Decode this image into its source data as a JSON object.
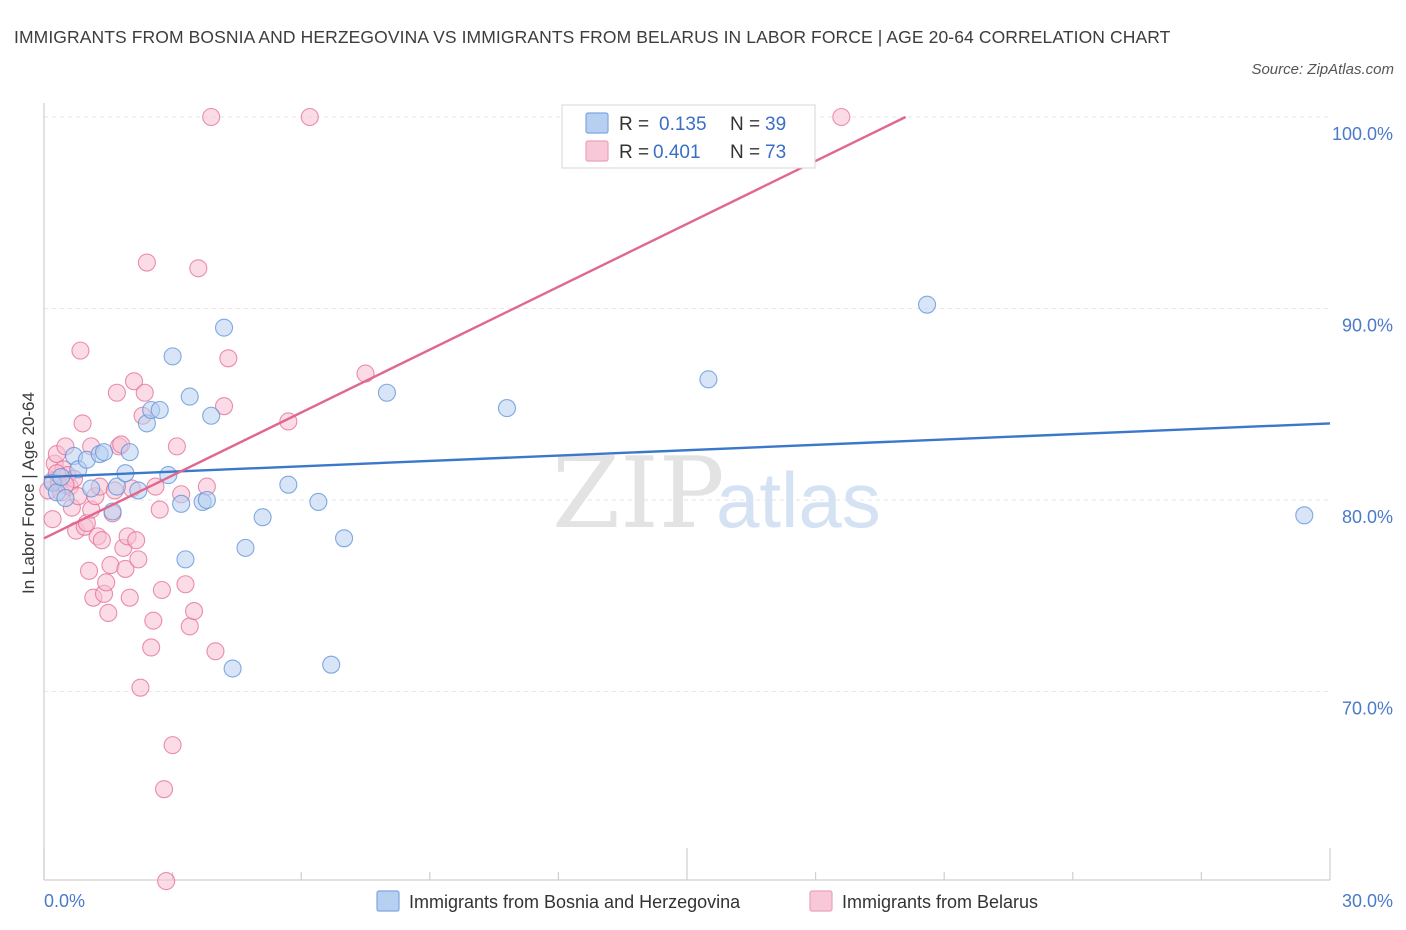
{
  "title": "IMMIGRANTS FROM BOSNIA AND HERZEGOVINA VS IMMIGRANTS FROM BELARUS IN LABOR FORCE | AGE 20-64 CORRELATION CHART",
  "source": "Source: ZipAtlas.com",
  "watermark": {
    "zip": "ZIP",
    "atlas": "atlas"
  },
  "legend": {
    "r_label": "R =",
    "n_label": "N =",
    "entries": [
      {
        "r": "0.135",
        "n": "39"
      },
      {
        "r": "0.401",
        "n": "73"
      }
    ]
  },
  "chart_data": {
    "type": "scatter",
    "xlabel": "",
    "ylabel": "In Labor Force | Age 20-64",
    "xlim": [
      0,
      30
    ],
    "ylim": [
      61,
      101
    ],
    "x_tick_labels": [
      "0.0%",
      "30.0%"
    ],
    "y_ticks": [
      70,
      80,
      90,
      100
    ],
    "y_tick_labels": [
      "70.0%",
      "80.0%",
      "90.0%",
      "100.0%"
    ],
    "grid": true,
    "legend_position": "top-center",
    "series": [
      {
        "name": "Immigrants from Bosnia and Herzegovina",
        "color": "#5b8fd9",
        "fill": "#b7cff0",
        "r": 0.135,
        "n": 39,
        "trend": {
          "x": [
            0,
            30
          ],
          "y": [
            81.2,
            84.0
          ]
        },
        "points": [
          [
            0.2,
            80.9
          ],
          [
            0.3,
            80.4
          ],
          [
            0.4,
            81.2
          ],
          [
            0.5,
            80.1
          ],
          [
            0.7,
            82.3
          ],
          [
            0.8,
            81.6
          ],
          [
            1.0,
            82.1
          ],
          [
            1.1,
            80.6
          ],
          [
            1.3,
            82.4
          ],
          [
            1.4,
            82.5
          ],
          [
            1.6,
            79.4
          ],
          [
            1.7,
            80.7
          ],
          [
            1.9,
            81.4
          ],
          [
            2.0,
            82.5
          ],
          [
            2.2,
            80.5
          ],
          [
            2.4,
            84.0
          ],
          [
            2.5,
            84.7
          ],
          [
            2.7,
            84.7
          ],
          [
            2.9,
            81.3
          ],
          [
            3.0,
            87.5
          ],
          [
            3.2,
            79.8
          ],
          [
            3.3,
            76.9
          ],
          [
            3.4,
            85.4
          ],
          [
            3.7,
            79.9
          ],
          [
            3.8,
            80.0
          ],
          [
            3.9,
            84.4
          ],
          [
            4.2,
            89.0
          ],
          [
            4.4,
            71.2
          ],
          [
            4.7,
            77.5
          ],
          [
            5.1,
            79.1
          ],
          [
            5.7,
            80.8
          ],
          [
            6.4,
            79.9
          ],
          [
            6.7,
            71.4
          ],
          [
            7.0,
            78.0
          ],
          [
            8.0,
            85.6
          ],
          [
            10.8,
            84.8
          ],
          [
            15.5,
            86.3
          ],
          [
            20.6,
            90.2
          ],
          [
            29.4,
            79.2
          ]
        ]
      },
      {
        "name": "Immigrants from Belarus",
        "color": "#e46b95",
        "fill": "#f8c0d2",
        "r": 0.401,
        "n": 73,
        "trend": {
          "x": [
            0,
            20.1
          ],
          "y": [
            78.0,
            100.0
          ]
        },
        "points": [
          [
            0.1,
            80.5
          ],
          [
            0.2,
            81.0
          ],
          [
            0.2,
            79.0
          ],
          [
            0.25,
            81.9
          ],
          [
            0.3,
            82.4
          ],
          [
            0.35,
            80.9
          ],
          [
            0.4,
            80.4
          ],
          [
            0.45,
            81.6
          ],
          [
            0.5,
            82.8
          ],
          [
            0.55,
            81.3
          ],
          [
            0.6,
            80.7
          ],
          [
            0.65,
            79.6
          ],
          [
            0.7,
            81.1
          ],
          [
            0.75,
            78.4
          ],
          [
            0.8,
            80.2
          ],
          [
            0.85,
            87.8
          ],
          [
            0.9,
            84.0
          ],
          [
            0.95,
            78.6
          ],
          [
            1.0,
            78.8
          ],
          [
            1.05,
            76.3
          ],
          [
            1.1,
            79.5
          ],
          [
            1.1,
            82.8
          ],
          [
            1.15,
            74.9
          ],
          [
            1.2,
            80.2
          ],
          [
            1.25,
            78.1
          ],
          [
            1.3,
            80.7
          ],
          [
            1.35,
            77.9
          ],
          [
            1.4,
            75.1
          ],
          [
            1.45,
            75.7
          ],
          [
            1.5,
            74.1
          ],
          [
            1.55,
            76.6
          ],
          [
            1.6,
            79.3
          ],
          [
            1.65,
            80.5
          ],
          [
            1.7,
            85.6
          ],
          [
            1.75,
            82.8
          ],
          [
            1.8,
            82.9
          ],
          [
            1.85,
            77.5
          ],
          [
            1.9,
            76.4
          ],
          [
            1.95,
            78.1
          ],
          [
            2.0,
            74.9
          ],
          [
            2.05,
            80.6
          ],
          [
            2.1,
            86.2
          ],
          [
            2.15,
            77.9
          ],
          [
            2.2,
            76.9
          ],
          [
            2.25,
            70.2
          ],
          [
            2.3,
            84.4
          ],
          [
            2.35,
            85.6
          ],
          [
            2.4,
            92.4
          ],
          [
            2.5,
            72.3
          ],
          [
            2.55,
            73.7
          ],
          [
            2.6,
            80.7
          ],
          [
            2.7,
            79.5
          ],
          [
            2.75,
            75.3
          ],
          [
            2.8,
            64.9
          ],
          [
            2.85,
            60.1
          ],
          [
            3.0,
            67.2
          ],
          [
            3.1,
            82.8
          ],
          [
            3.2,
            80.3
          ],
          [
            3.3,
            75.6
          ],
          [
            3.4,
            73.4
          ],
          [
            3.5,
            74.2
          ],
          [
            3.6,
            92.1
          ],
          [
            3.8,
            80.7
          ],
          [
            3.9,
            100.0
          ],
          [
            4.0,
            72.1
          ],
          [
            4.2,
            84.9
          ],
          [
            4.3,
            87.4
          ],
          [
            5.7,
            84.1
          ],
          [
            6.2,
            100.0
          ],
          [
            7.5,
            86.6
          ],
          [
            18.6,
            100.0
          ],
          [
            0.3,
            81.4
          ],
          [
            0.5,
            80.8
          ]
        ]
      }
    ]
  }
}
